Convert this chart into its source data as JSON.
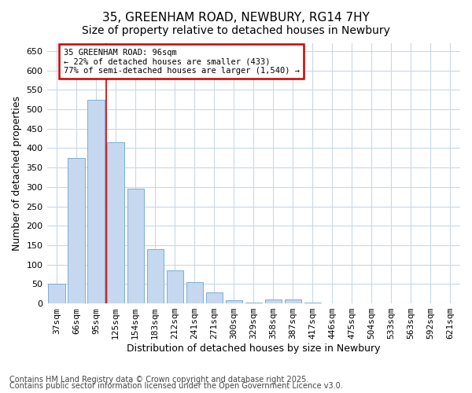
{
  "title1": "35, GREENHAM ROAD, NEWBURY, RG14 7HY",
  "title2": "Size of property relative to detached houses in Newbury",
  "xlabel": "Distribution of detached houses by size in Newbury",
  "ylabel": "Number of detached properties",
  "categories": [
    "37sqm",
    "66sqm",
    "95sqm",
    "125sqm",
    "154sqm",
    "183sqm",
    "212sqm",
    "241sqm",
    "271sqm",
    "300sqm",
    "329sqm",
    "358sqm",
    "387sqm",
    "417sqm",
    "446sqm",
    "475sqm",
    "504sqm",
    "533sqm",
    "563sqm",
    "592sqm",
    "621sqm"
  ],
  "values": [
    50,
    375,
    525,
    415,
    295,
    140,
    85,
    55,
    28,
    8,
    2,
    10,
    10,
    2,
    1,
    1,
    0,
    0,
    0,
    0,
    1
  ],
  "bar_color": "#c5d8f0",
  "bar_edge_color": "#7aafd4",
  "ylim": [
    0,
    670
  ],
  "yticks": [
    0,
    50,
    100,
    150,
    200,
    250,
    300,
    350,
    400,
    450,
    500,
    550,
    600,
    650
  ],
  "vline_x_index": 2,
  "vline_color": "#cc0000",
  "annotation_title": "35 GREENHAM ROAD: 96sqm",
  "annotation_line1": "← 22% of detached houses are smaller (433)",
  "annotation_line2": "77% of semi-detached houses are larger (1,540) →",
  "annotation_box_color": "#cc0000",
  "footer_line1": "Contains HM Land Registry data © Crown copyright and database right 2025.",
  "footer_line2": "Contains public sector information licensed under the Open Government Licence v3.0.",
  "bg_color": "#ffffff",
  "grid_color": "#c8d8e8",
  "title_fontsize": 11,
  "axis_label_fontsize": 9,
  "tick_fontsize": 8,
  "footer_fontsize": 7
}
